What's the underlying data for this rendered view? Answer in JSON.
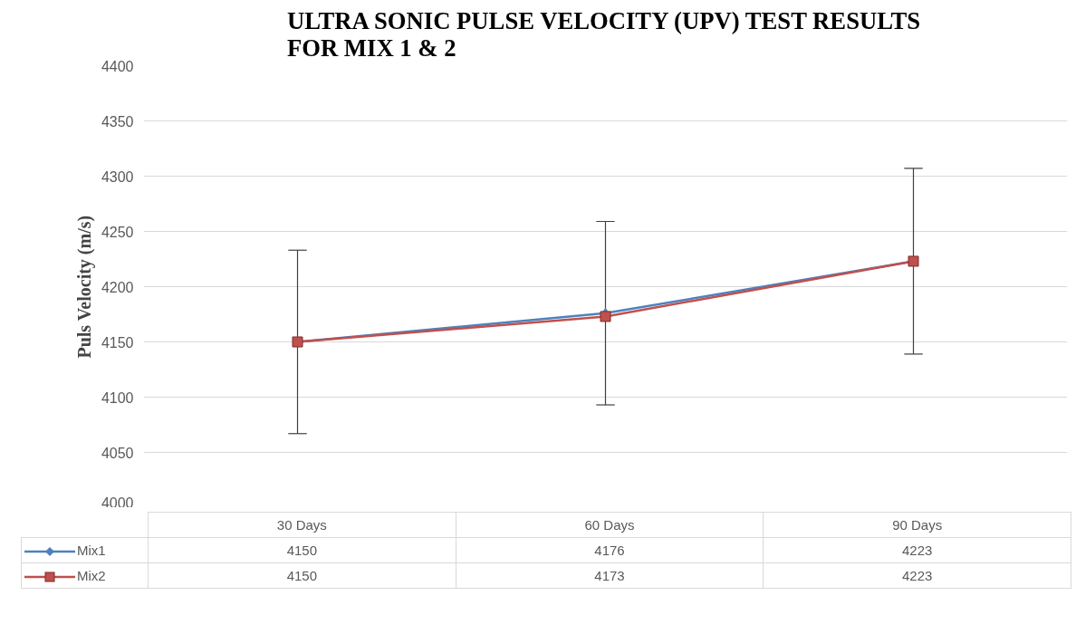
{
  "chart_data": {
    "type": "line",
    "title": "ULTRA SONIC PULSE VELOCITY (UPV) TEST RESULTS FOR MIX 1 & 2",
    "ylabel": "Puls Velocity (m/s)",
    "categories": [
      "30 Days",
      "60 Days",
      "90 Days"
    ],
    "series": [
      {
        "name": "Mix1",
        "color": "#4f81bd",
        "marker": "diamond",
        "values": [
          4150,
          4176,
          4223
        ],
        "errors": [
          83,
          83,
          84
        ]
      },
      {
        "name": "Mix2",
        "color": "#c0504d",
        "marker": "square",
        "values": [
          4150,
          4173,
          4223
        ]
      }
    ],
    "ylim": [
      4000,
      4400
    ],
    "yticks": [
      4000,
      4050,
      4100,
      4150,
      4200,
      4250,
      4300,
      4350,
      4400
    ],
    "grid": "y",
    "data_labels": true,
    "legend": "bottom"
  }
}
